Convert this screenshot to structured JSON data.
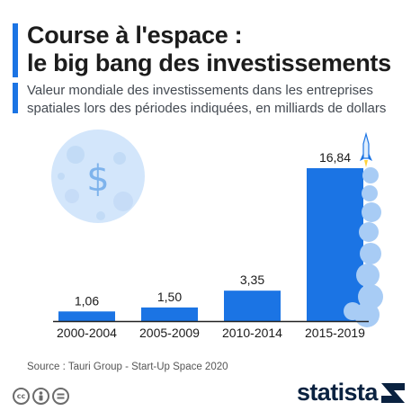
{
  "header": {
    "title_line1": "Course à l'espace :",
    "title_line2": "le big bang des investissements",
    "subtitle_line1": "Valeur mondiale des investissements dans les entreprises",
    "subtitle_line2": "spatiales lors des périodes indiquées, en milliards de dollars"
  },
  "chart_data": {
    "type": "bar",
    "categories": [
      "2000-2004",
      "2005-2009",
      "2010-2014",
      "2015-2019"
    ],
    "values": [
      1.06,
      1.5,
      3.35,
      16.84
    ],
    "value_labels": [
      "1,06",
      "1,50",
      "3,35",
      "16,84"
    ],
    "title": "",
    "xlabel": "",
    "ylabel": "",
    "ylim": [
      0,
      16.84
    ],
    "grid": false,
    "legend": "none",
    "bar_color": "#1b74e4",
    "highlight_color": "#1b74e4",
    "decoration": [
      "moon-dollar-icon",
      "rocket-icon",
      "smoke-clouds"
    ]
  },
  "footer": {
    "source": "Source : Tauri Group - Start-Up Space 2020",
    "cc_icons": [
      "cc",
      "by",
      "="
    ],
    "brand": "statista"
  },
  "colors": {
    "accent": "#1b74e4",
    "moon": "#d3e6fb",
    "brand_navy": "#0a2240",
    "axis": "#222222"
  }
}
